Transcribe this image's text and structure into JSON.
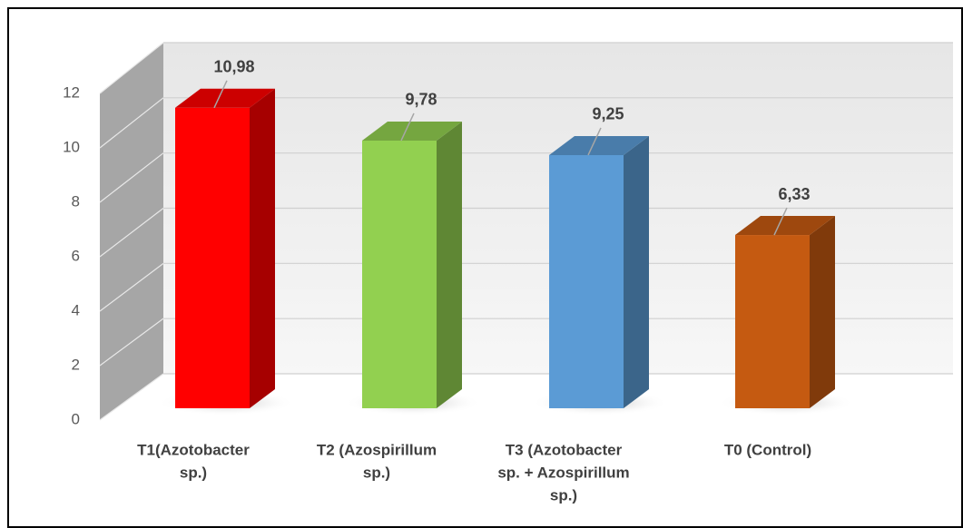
{
  "chart_data": {
    "type": "bar3d",
    "categories": [
      [
        "T1(Azotobacter",
        "sp.)"
      ],
      [
        "T2 (Azospirillum",
        "sp.)"
      ],
      [
        "T3 (Azotobacter",
        "sp. + Azospirillum",
        "sp.)"
      ],
      [
        "T0 (Control)"
      ]
    ],
    "values": [
      10.98,
      9.78,
      9.25,
      6.33
    ],
    "value_labels": [
      "10,98",
      "9,78",
      "9,25",
      "6,33"
    ],
    "colors": [
      "#ff0000",
      "#92d050",
      "#5b9bd5",
      "#c55a11"
    ],
    "ylim": [
      0,
      12
    ],
    "yticks": [
      0,
      2,
      4,
      6,
      8,
      10,
      12
    ],
    "grid": true
  }
}
